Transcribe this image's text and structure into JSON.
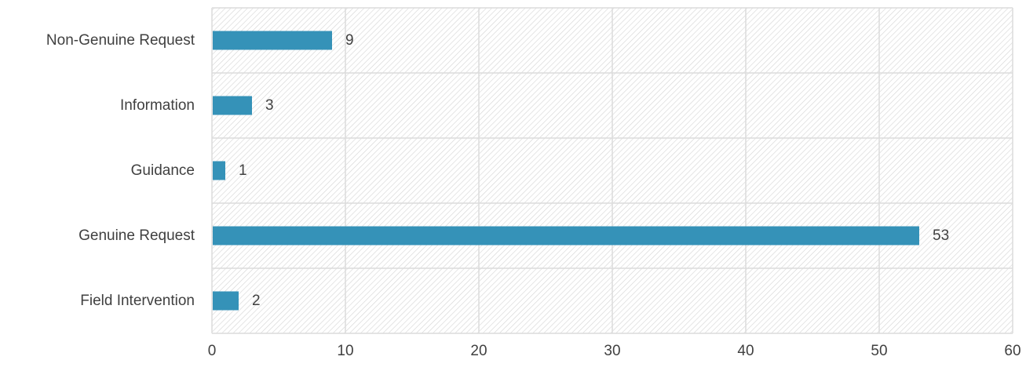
{
  "chart_data": {
    "type": "bar",
    "orientation": "horizontal",
    "title": "",
    "xlabel": "",
    "ylabel": "",
    "categories": [
      "Non-Genuine Request",
      "Information",
      "Guidance",
      "Genuine Request",
      "Field Intervention"
    ],
    "values": [
      9,
      3,
      1,
      53,
      2
    ],
    "xlim": [
      0,
      60
    ],
    "x_ticks": [
      0,
      10,
      20,
      30,
      40,
      50,
      60
    ],
    "grid": true,
    "legend": "none",
    "data_labels": true
  },
  "colors": {
    "bar": "#3592b8",
    "grid": "#dcdcdc",
    "hatch": "#d4d4d4",
    "plot_background": "#ffffff",
    "text": "#404040"
  }
}
